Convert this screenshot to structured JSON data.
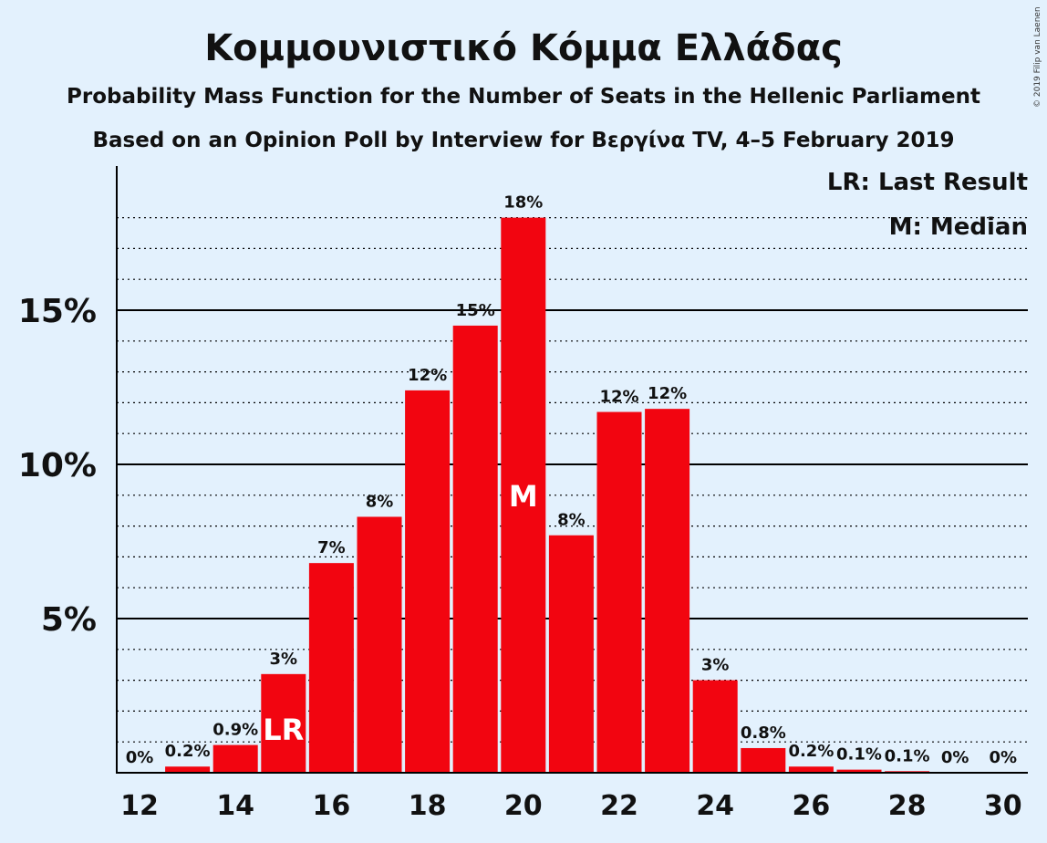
{
  "chart_data": {
    "type": "bar",
    "title": "Κομμουνιστικό Κόμμα Ελλάδας",
    "subtitle": "Probability Mass Function for the Number of Seats in the Hellenic Parliament",
    "subtitle2": "Based on an Opinion Poll by Interview for Βεργίνα TV, 4–5 February 2019",
    "copyright": "© 2019 Filip van Laenen",
    "x": [
      12,
      13,
      14,
      15,
      16,
      17,
      18,
      19,
      20,
      21,
      22,
      23,
      24,
      25,
      26,
      27,
      28,
      29,
      30
    ],
    "values": [
      0,
      0.2,
      0.9,
      3.2,
      6.8,
      8.3,
      12.4,
      14.5,
      18.0,
      7.7,
      11.7,
      11.8,
      3.0,
      0.8,
      0.2,
      0.1,
      0.05,
      0,
      0
    ],
    "labels": [
      "0%",
      "0.2%",
      "0.9%",
      "3%",
      "7%",
      "8%",
      "12%",
      "15%",
      "18%",
      "8%",
      "12%",
      "12%",
      "3%",
      "0.8%",
      "0.2%",
      "0.1%",
      "0.1%",
      "0%",
      "0%"
    ],
    "xticks": [
      "12",
      "14",
      "16",
      "18",
      "20",
      "22",
      "24",
      "26",
      "28",
      "30"
    ],
    "yticks": [
      "5%",
      "10%",
      "15%"
    ],
    "ylim": [
      0,
      19.7
    ],
    "last_result_seat": 15,
    "median_seat": 20,
    "last_result_marker": "LR",
    "median_marker": "M",
    "legend": [
      "LR: Last Result",
      "M: Median"
    ],
    "legend_position": "top-right",
    "bar_color": "#f20510",
    "background_color": "#e3f1fd"
  }
}
